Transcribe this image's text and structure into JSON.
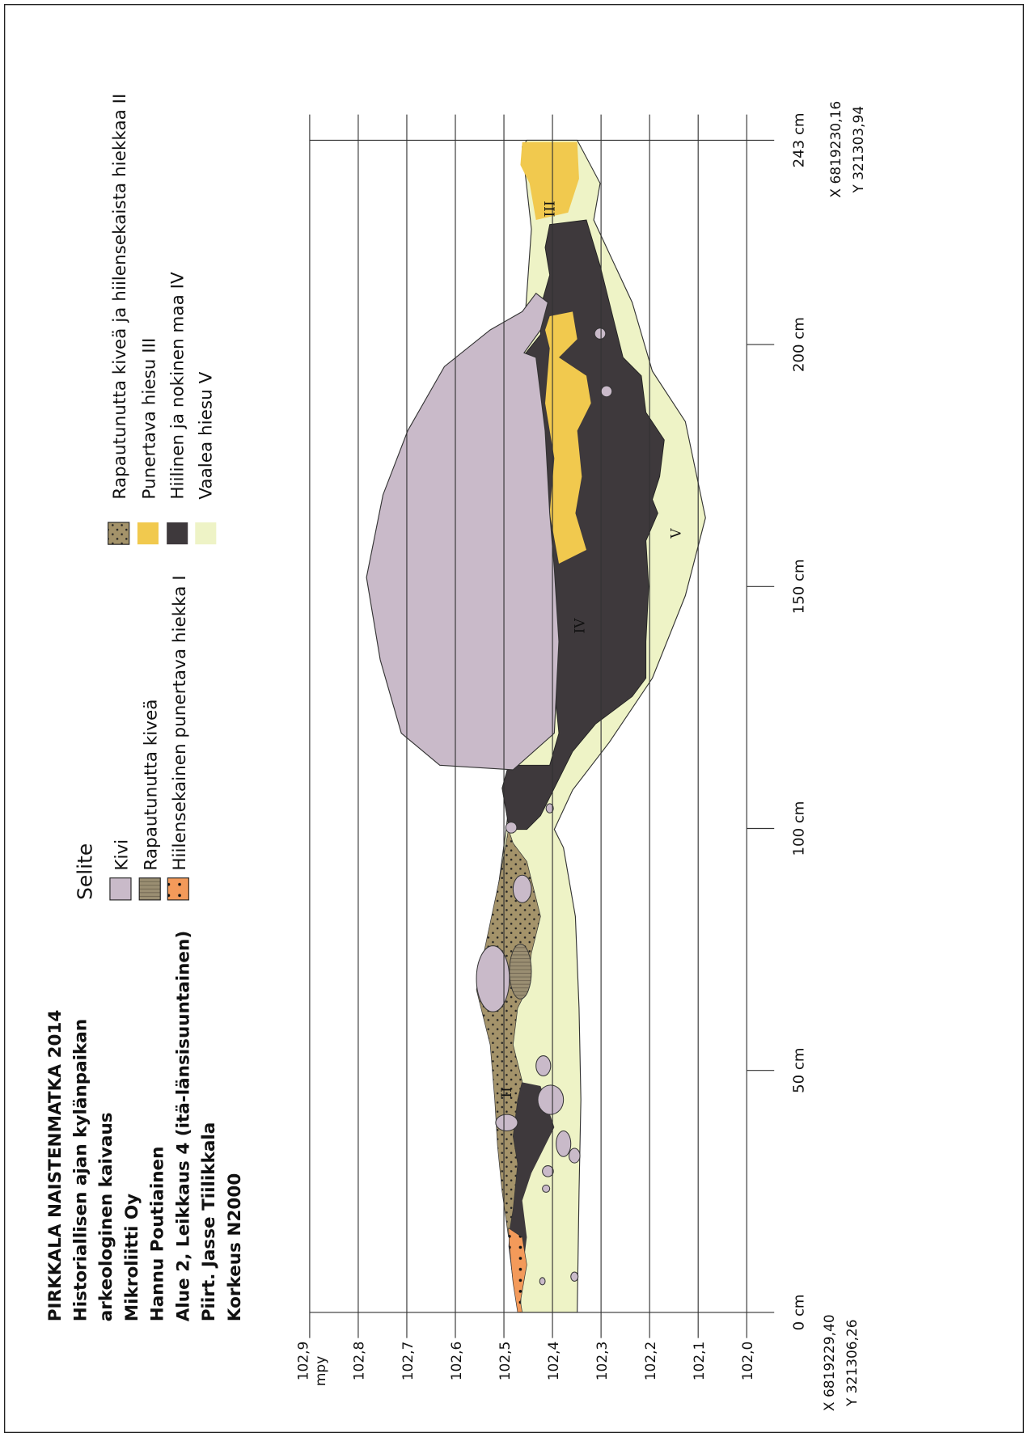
{
  "header": {
    "lines": [
      "PIRKKALA NAISTENMATKA 2014",
      "Historiallisen ajan kylänpaikan",
      "arkeologinen kaivaus",
      "Mikroliitti Oy",
      "Hannu Poutiainen",
      "Alue 2, Leikkaus 4 (itä-länsisuuntainen)",
      "Piirt. Jasse Tiilikkala",
      "Korkeus N2000"
    ]
  },
  "legend": {
    "title": "Selite",
    "items": [
      "Kivi",
      "Rapautunutta kiveä",
      "Hiilensekainen punertava hiekka I",
      "Rapautunutta kiveä ja hiilensekaista hiekkaa II",
      "Punertava hiesu III",
      "Hiilinen ja nokinen maa IV",
      "Vaalea hiesu V"
    ]
  },
  "elevation_axis": {
    "unit": "mpy",
    "labels": [
      "102,9",
      "102,8",
      "102,7",
      "102,6",
      "102,5",
      "102,4",
      "102,3",
      "102,2",
      "102,1",
      "102,0"
    ]
  },
  "distance_axis": {
    "labels": [
      "0 cm",
      "50 cm",
      "100 cm",
      "150 cm",
      "200 cm",
      "243 cm"
    ]
  },
  "coordinates": {
    "start": [
      "X 6819229,40",
      "Y 321306,26"
    ],
    "end": [
      "X 6819230,16",
      "Y 321303,94"
    ]
  },
  "layer_labels": [
    "II",
    "III",
    "IV",
    "V"
  ]
}
